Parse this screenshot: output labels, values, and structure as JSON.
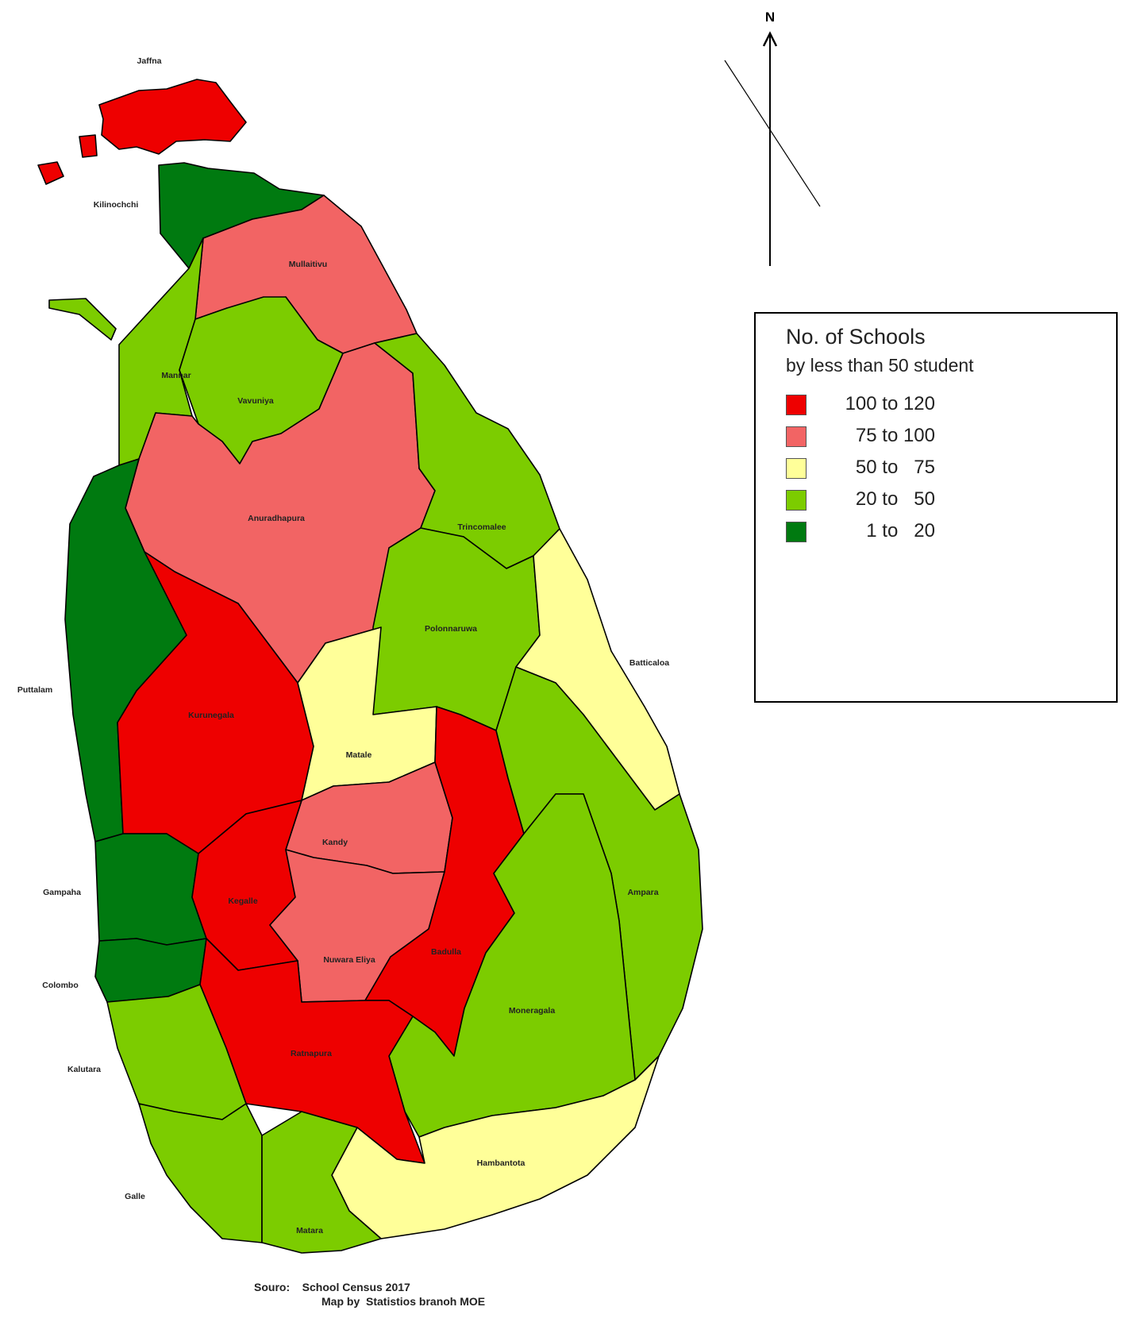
{
  "north_arrow": {
    "label": "N"
  },
  "legend": {
    "title": "No. of Schools",
    "subtitle": "by less than 50 student",
    "items": [
      {
        "range": "100 to 120",
        "color": "#ee0000"
      },
      {
        "range": "75 to 100",
        "color": "#f26464"
      },
      {
        "range": "50 to   75",
        "color": "#ffff99"
      },
      {
        "range": "20 to   50",
        "color": "#7ccc00"
      },
      {
        "range": "1 to   20",
        "color": "#007a10"
      }
    ]
  },
  "districts": [
    {
      "name": "Jaffna",
      "color": "#ee0000"
    },
    {
      "name": "Kilinochchi",
      "color": "#007a10"
    },
    {
      "name": "Mullaitivu",
      "color": "#f26464"
    },
    {
      "name": "Mannar",
      "color": "#7ccc00"
    },
    {
      "name": "Vavuniya",
      "color": "#7ccc00"
    },
    {
      "name": "Anuradhapura",
      "color": "#f26464"
    },
    {
      "name": "Trincomalee",
      "color": "#7ccc00"
    },
    {
      "name": "Puttalam",
      "color": "#007a10"
    },
    {
      "name": "Polonnaruwa",
      "color": "#7ccc00"
    },
    {
      "name": "Batticaloa",
      "color": "#ffff99"
    },
    {
      "name": "Kurunegala",
      "color": "#ee0000"
    },
    {
      "name": "Matale",
      "color": "#ffff99"
    },
    {
      "name": "Kandy",
      "color": "#f26464"
    },
    {
      "name": "Gampaha",
      "color": "#007a10"
    },
    {
      "name": "Kegalle",
      "color": "#ee0000"
    },
    {
      "name": "Nuwara Eliya",
      "color": "#f26464"
    },
    {
      "name": "Badulla",
      "color": "#ee0000"
    },
    {
      "name": "Ampara",
      "color": "#7ccc00"
    },
    {
      "name": "Colombo",
      "color": "#007a10"
    },
    {
      "name": "Moneragala",
      "color": "#7ccc00"
    },
    {
      "name": "Ratnapura",
      "color": "#ee0000"
    },
    {
      "name": "Kalutara",
      "color": "#7ccc00"
    },
    {
      "name": "Hambantota",
      "color": "#ffff99"
    },
    {
      "name": "Galle",
      "color": "#7ccc00"
    },
    {
      "name": "Matara",
      "color": "#7ccc00"
    }
  ],
  "source": {
    "line1": "Souro:    School Census 2017",
    "line2": "Map by  Statistios branoh MOE"
  }
}
